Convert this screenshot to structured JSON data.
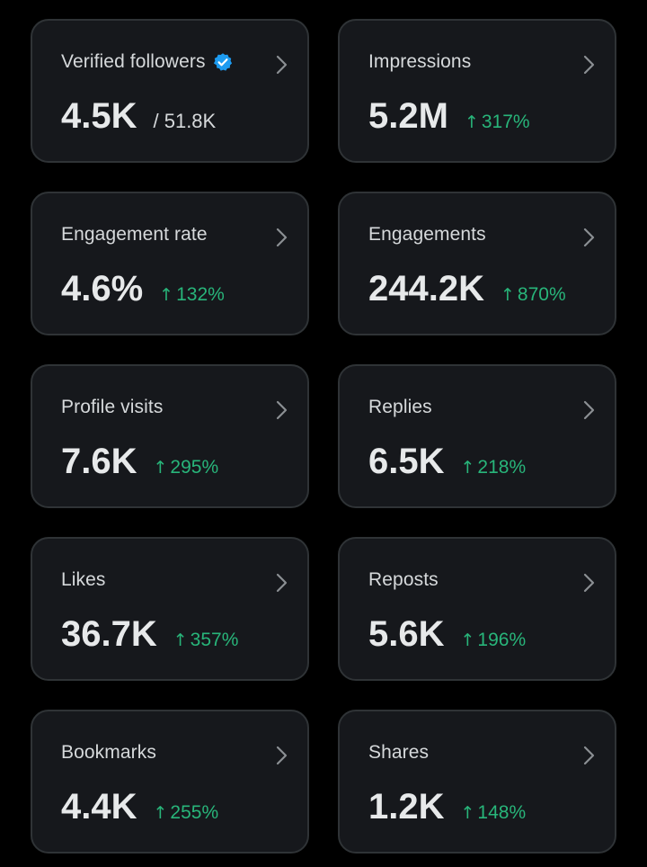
{
  "colors": {
    "background": "#000000",
    "card": "#16181c",
    "card_border": "#2f3336",
    "text": "#e7e9ea",
    "positive": "#28b57a",
    "verified": "#1d9bf0"
  },
  "cards": [
    {
      "title": "Verified followers",
      "value": "4.5K",
      "sub": "/ 51.8K",
      "icon": "verified-badge-icon"
    },
    {
      "title": "Impressions",
      "value": "5.2M",
      "delta": "317%"
    },
    {
      "title": "Engagement rate",
      "value": "4.6%",
      "delta": "132%"
    },
    {
      "title": "Engagements",
      "value": "244.2K",
      "delta": "870%"
    },
    {
      "title": "Profile visits",
      "value": "7.6K",
      "delta": "295%"
    },
    {
      "title": "Replies",
      "value": "6.5K",
      "delta": "218%"
    },
    {
      "title": "Likes",
      "value": "36.7K",
      "delta": "357%"
    },
    {
      "title": "Reposts",
      "value": "5.6K",
      "delta": "196%"
    },
    {
      "title": "Bookmarks",
      "value": "4.4K",
      "delta": "255%"
    },
    {
      "title": "Shares",
      "value": "1.2K",
      "delta": "148%"
    }
  ],
  "icons": {
    "chevron": "chevron-right-icon",
    "arrow": "arrow-up-icon"
  }
}
